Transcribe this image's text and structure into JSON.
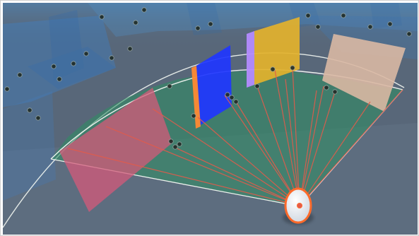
{
  "scene": {
    "background_color": "#586779",
    "floor_color": "#5f6f82",
    "wall_color": "#4f8ec5",
    "fov_color": "#2e8f63",
    "fov_edge_color": "#f3f7f2",
    "ray_color": "#e35b4b",
    "agent_outline_color": "#ff6a2a",
    "agent_fill_color": "#f7f9fb",
    "node_color": "#1f2b26",
    "panels": [
      {
        "name": "red",
        "color": "#d45a7a"
      },
      {
        "name": "blue",
        "color": "#1f36ff"
      },
      {
        "name": "purple",
        "color": "#b48bff"
      },
      {
        "name": "yellow",
        "color": "#e3b22d"
      },
      {
        "name": "beige",
        "color": "#d9b8a3"
      }
    ]
  }
}
